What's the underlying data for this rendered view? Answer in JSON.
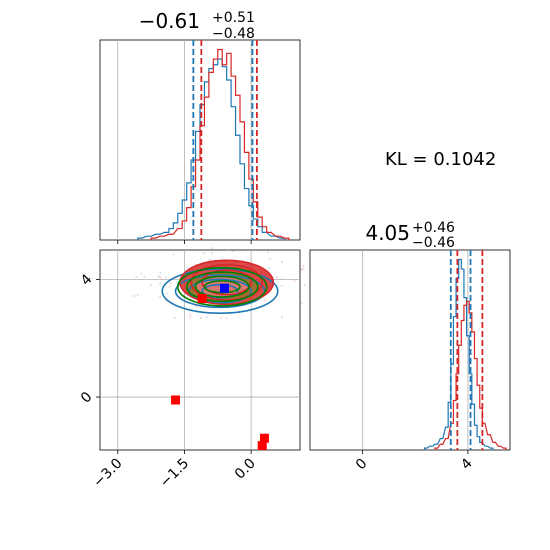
{
  "chart_data": [
    {
      "type": "histogram",
      "panel": "top-left",
      "title": {
        "value": "−0.61",
        "plus": "+0.51",
        "minus": "−0.48"
      },
      "xlim": [
        -3.4,
        1.1
      ],
      "grid": true,
      "colors": {
        "series_a": "#1f77b4",
        "series_b": "#d62728"
      },
      "series": [
        {
          "color_key": "series_a",
          "x": [
            -2.5,
            -2.3,
            -2.1,
            -1.9,
            -1.8,
            -1.7,
            -1.6,
            -1.5,
            -1.4,
            -1.3,
            -1.2,
            -1.1,
            -1.0,
            -0.9,
            -0.8,
            -0.7,
            -0.6,
            -0.5,
            -0.4,
            -0.3,
            -0.2,
            -0.1,
            0.0,
            0.1,
            0.2,
            0.3,
            0.5,
            0.7
          ],
          "y": [
            1,
            2,
            3,
            4,
            6,
            9,
            14,
            21,
            30,
            42,
            57,
            71,
            83,
            90,
            92,
            95,
            91,
            84,
            70,
            55,
            40,
            27,
            18,
            11,
            7,
            4,
            2,
            1
          ]
        },
        {
          "color_key": "series_b",
          "x": [
            -2.2,
            -2.0,
            -1.8,
            -1.6,
            -1.5,
            -1.4,
            -1.3,
            -1.2,
            -1.1,
            -1.0,
            -0.9,
            -0.8,
            -0.7,
            -0.6,
            -0.5,
            -0.4,
            -0.3,
            -0.2,
            -0.1,
            0.0,
            0.1,
            0.2,
            0.3,
            0.4,
            0.6,
            0.8
          ],
          "y": [
            1,
            2,
            3,
            6,
            10,
            17,
            28,
            42,
            60,
            75,
            88,
            95,
            100,
            92,
            98,
            86,
            76,
            62,
            46,
            32,
            20,
            12,
            7,
            4,
            2,
            1
          ]
        }
      ],
      "quantile_lines": [
        {
          "color_key": "series_a",
          "x": [
            -1.3,
            0.03
          ]
        },
        {
          "color_key": "series_b",
          "x": [
            -1.12,
            0.13
          ]
        }
      ]
    },
    {
      "type": "contour",
      "panel": "bottom-left",
      "xlim": [
        -3.4,
        1.1
      ],
      "ylim": [
        -1.8,
        5.0
      ],
      "xticks": [
        "−3.0",
        "−1.5",
        "0.0"
      ],
      "xtick_values": [
        -3.0,
        -1.5,
        0.0
      ],
      "yticks": [
        "0",
        "4"
      ],
      "ytick_values": [
        0,
        4
      ],
      "grid": true,
      "contours": [
        {
          "color": "#1f77b4",
          "cx": -0.7,
          "cy": 3.6,
          "rx": [
            1.3,
            1.0,
            0.7,
            0.4
          ],
          "ry": [
            0.75,
            0.55,
            0.4,
            0.22
          ]
        },
        {
          "color": "#d62728",
          "cx": -0.55,
          "cy": 3.9,
          "rx": [
            1.05,
            0.8,
            0.55
          ],
          "ry": [
            0.75,
            0.6,
            0.42
          ]
        },
        {
          "color": "#008000",
          "cx": -0.65,
          "cy": 3.75,
          "rx": [
            1.0,
            0.8,
            0.6,
            0.4
          ],
          "ry": [
            0.65,
            0.5,
            0.35,
            0.2
          ]
        }
      ],
      "markers": [
        {
          "x": -0.6,
          "y": 3.7,
          "color": "#0000ff"
        },
        {
          "x": -1.1,
          "y": 3.35,
          "color": "#ff0000"
        },
        {
          "x": -1.7,
          "y": -0.1,
          "color": "#ff0000"
        },
        {
          "x": 0.3,
          "y": -1.4,
          "color": "#ff0000"
        },
        {
          "x": 0.25,
          "y": -1.65,
          "color": "#ff0000"
        }
      ]
    },
    {
      "type": "histogram",
      "panel": "bottom-right",
      "title": {
        "value": "4.05",
        "plus": "+0.46",
        "minus": "−0.46"
      },
      "xlim": [
        -2.0,
        5.6
      ],
      "xticks": [
        "0",
        "4"
      ],
      "xtick_values": [
        0,
        4
      ],
      "grid": true,
      "series": [
        {
          "color_key": "series_a",
          "x": [
            2.4,
            2.6,
            2.8,
            3.0,
            3.2,
            3.3,
            3.4,
            3.5,
            3.6,
            3.7,
            3.8,
            3.9,
            4.0,
            4.1,
            4.2,
            4.3,
            4.4,
            4.5,
            4.7,
            4.9
          ],
          "y": [
            1,
            2,
            3,
            6,
            12,
            25,
            45,
            70,
            90,
            100,
            95,
            80,
            60,
            40,
            24,
            13,
            7,
            4,
            2,
            1
          ]
        },
        {
          "color_key": "series_b",
          "x": [
            2.8,
            3.0,
            3.2,
            3.4,
            3.5,
            3.6,
            3.7,
            3.8,
            3.9,
            4.0,
            4.1,
            4.2,
            4.3,
            4.4,
            4.5,
            4.6,
            4.8,
            5.0,
            5.2,
            5.4
          ],
          "y": [
            1,
            3,
            6,
            14,
            26,
            40,
            55,
            68,
            76,
            78,
            72,
            62,
            48,
            34,
            22,
            14,
            8,
            4,
            2,
            1
          ]
        }
      ],
      "quantile_lines": [
        {
          "color_key": "series_a",
          "x": [
            3.35,
            4.1
          ]
        },
        {
          "color_key": "series_b",
          "x": [
            3.6,
            4.55
          ]
        }
      ]
    }
  ],
  "annotation": {
    "kl": "KL = 0.1042"
  }
}
